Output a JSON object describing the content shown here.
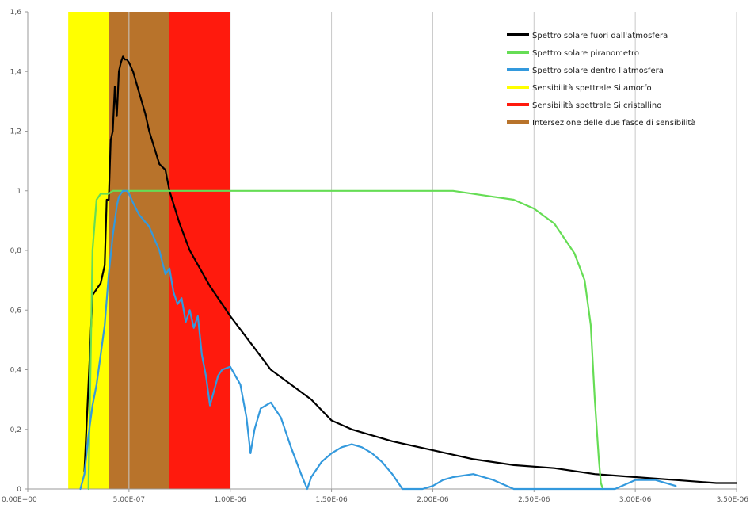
{
  "chart_data": {
    "type": "line",
    "title": "",
    "xlabel": "",
    "ylabel": "",
    "xlim": [
      0,
      3500000
    ],
    "ylim": [
      0,
      1.6
    ],
    "grid": "vertical",
    "legend_position": "top-right",
    "x_ticks": [
      {
        "value": 0,
        "label": "0,00E+00"
      },
      {
        "value": 500000,
        "label": "5,00E-07"
      },
      {
        "value": 1000000,
        "label": "1,00E-06"
      },
      {
        "value": 1500000,
        "label": "1,50E-06"
      },
      {
        "value": 2000000,
        "label": "2,00E-06"
      },
      {
        "value": 2500000,
        "label": "2,50E-06"
      },
      {
        "value": 3000000,
        "label": "3,00E-06"
      },
      {
        "value": 3500000,
        "label": "3,50E-06"
      }
    ],
    "y_ticks": [
      {
        "value": 0,
        "label": "0"
      },
      {
        "value": 0.2,
        "label": "0,2"
      },
      {
        "value": 0.4,
        "label": "0,4"
      },
      {
        "value": 0.6,
        "label": "0,6"
      },
      {
        "value": 0.8,
        "label": "0,8"
      },
      {
        "value": 1,
        "label": "1"
      },
      {
        "value": 1.2,
        "label": "1,2"
      },
      {
        "value": 1.4,
        "label": "1,4"
      },
      {
        "value": 1.6,
        "label": "1,6"
      }
    ],
    "bands": [
      {
        "name": "Sensibilità spettrale Si amorfo",
        "from": 200000,
        "to": 400000,
        "color": "#ffff00"
      },
      {
        "name": "Intersezione delle due fasce di sensibilità",
        "from": 400000,
        "to": 700000,
        "color": "#b8732b"
      },
      {
        "name": "Sensibilità spettrale Si cristallino",
        "from": 700000,
        "to": 1000000,
        "color": "#ff1a0d"
      }
    ],
    "series": [
      {
        "name": "Spettro solare fuori dall'atmosfera",
        "color": "#000000",
        "width": 2.2,
        "x": [
          280000,
          300000,
          320000,
          340000,
          360000,
          380000,
          390000,
          400000,
          410000,
          420000,
          430000,
          440000,
          450000,
          460000,
          470000,
          480000,
          490000,
          500000,
          520000,
          550000,
          580000,
          600000,
          650000,
          680000,
          700000,
          750000,
          800000,
          900000,
          1000000,
          1100000,
          1200000,
          1300000,
          1400000,
          1500000,
          1600000,
          1800000,
          2000000,
          2200000,
          2400000,
          2600000,
          2800000,
          3000000,
          3200000,
          3400000,
          3500000
        ],
        "values": [
          0.06,
          0.35,
          0.65,
          0.67,
          0.69,
          0.75,
          0.97,
          0.97,
          1.17,
          1.2,
          1.35,
          1.25,
          1.4,
          1.43,
          1.45,
          1.44,
          1.44,
          1.43,
          1.4,
          1.33,
          1.26,
          1.2,
          1.09,
          1.07,
          1.0,
          0.89,
          0.8,
          0.68,
          0.58,
          0.49,
          0.4,
          0.35,
          0.3,
          0.23,
          0.2,
          0.16,
          0.13,
          0.1,
          0.08,
          0.07,
          0.05,
          0.04,
          0.03,
          0.02,
          0.02
        ]
      },
      {
        "name": "Spettro solare piranometro",
        "color": "#66dd55",
        "width": 2.2,
        "x": [
          300000,
          320000,
          340000,
          360000,
          380000,
          400000,
          420000,
          450000,
          500000,
          1000000,
          1500000,
          2000000,
          2100000,
          2300000,
          2400000,
          2500000,
          2600000,
          2700000,
          2750000,
          2780000,
          2800000,
          2820000,
          2830000,
          2840000
        ],
        "values": [
          0.0,
          0.8,
          0.97,
          0.99,
          0.99,
          0.99,
          1.0,
          1.0,
          1.0,
          1.0,
          1.0,
          1.0,
          1.0,
          0.98,
          0.97,
          0.94,
          0.89,
          0.79,
          0.7,
          0.55,
          0.3,
          0.1,
          0.02,
          0.0
        ]
      },
      {
        "name": "Spettro solare dentro l'atmosfera",
        "color": "#3399dd",
        "width": 2.2,
        "x": [
          260000,
          280000,
          300000,
          320000,
          340000,
          360000,
          380000,
          400000,
          420000,
          430000,
          440000,
          450000,
          460000,
          470000,
          480000,
          490000,
          500000,
          520000,
          550000,
          600000,
          650000,
          680000,
          700000,
          720000,
          740000,
          760000,
          780000,
          800000,
          820000,
          840000,
          860000,
          880000,
          900000,
          920000,
          940000,
          960000,
          1000000,
          1050000,
          1080000,
          1100000,
          1120000,
          1150000,
          1200000,
          1250000,
          1300000,
          1350000,
          1380000,
          1400000,
          1450000,
          1500000,
          1550000,
          1600000,
          1650000,
          1700000,
          1750000,
          1800000,
          1850000,
          1900000,
          1950000,
          2000000,
          2050000,
          2100000,
          2200000,
          2300000,
          2400000,
          2500000,
          2600000,
          2700000,
          2800000,
          2900000,
          3000000,
          3100000,
          3200000
        ],
        "values": [
          0.0,
          0.05,
          0.18,
          0.28,
          0.35,
          0.45,
          0.55,
          0.72,
          0.85,
          0.9,
          0.95,
          0.98,
          0.99,
          1.0,
          1.0,
          1.0,
          0.99,
          0.96,
          0.92,
          0.88,
          0.8,
          0.72,
          0.74,
          0.66,
          0.62,
          0.64,
          0.56,
          0.6,
          0.54,
          0.58,
          0.45,
          0.38,
          0.28,
          0.33,
          0.38,
          0.4,
          0.41,
          0.35,
          0.24,
          0.12,
          0.2,
          0.27,
          0.29,
          0.24,
          0.14,
          0.05,
          0.0,
          0.04,
          0.09,
          0.12,
          0.14,
          0.15,
          0.14,
          0.12,
          0.09,
          0.05,
          0.0,
          0.0,
          0.0,
          0.01,
          0.03,
          0.04,
          0.05,
          0.03,
          0.0,
          0.0,
          0.0,
          0.0,
          0.0,
          0.0,
          0.03,
          0.03,
          0.01
        ]
      }
    ],
    "legend": [
      {
        "label": "Spettro solare fuori dall'atmosfera",
        "color": "#000000"
      },
      {
        "label": "Spettro solare piranometro",
        "color": "#66dd55"
      },
      {
        "label": "Spettro solare dentro l'atmosfera",
        "color": "#3399dd"
      },
      {
        "label": "Sensibilità spettrale Si amorfo",
        "color": "#ffff00"
      },
      {
        "label": "Sensibilità spettrale Si cristallino",
        "color": "#ff1a0d"
      },
      {
        "label": "Intersezione delle due fasce di sensibilità",
        "color": "#b8732b"
      }
    ]
  }
}
